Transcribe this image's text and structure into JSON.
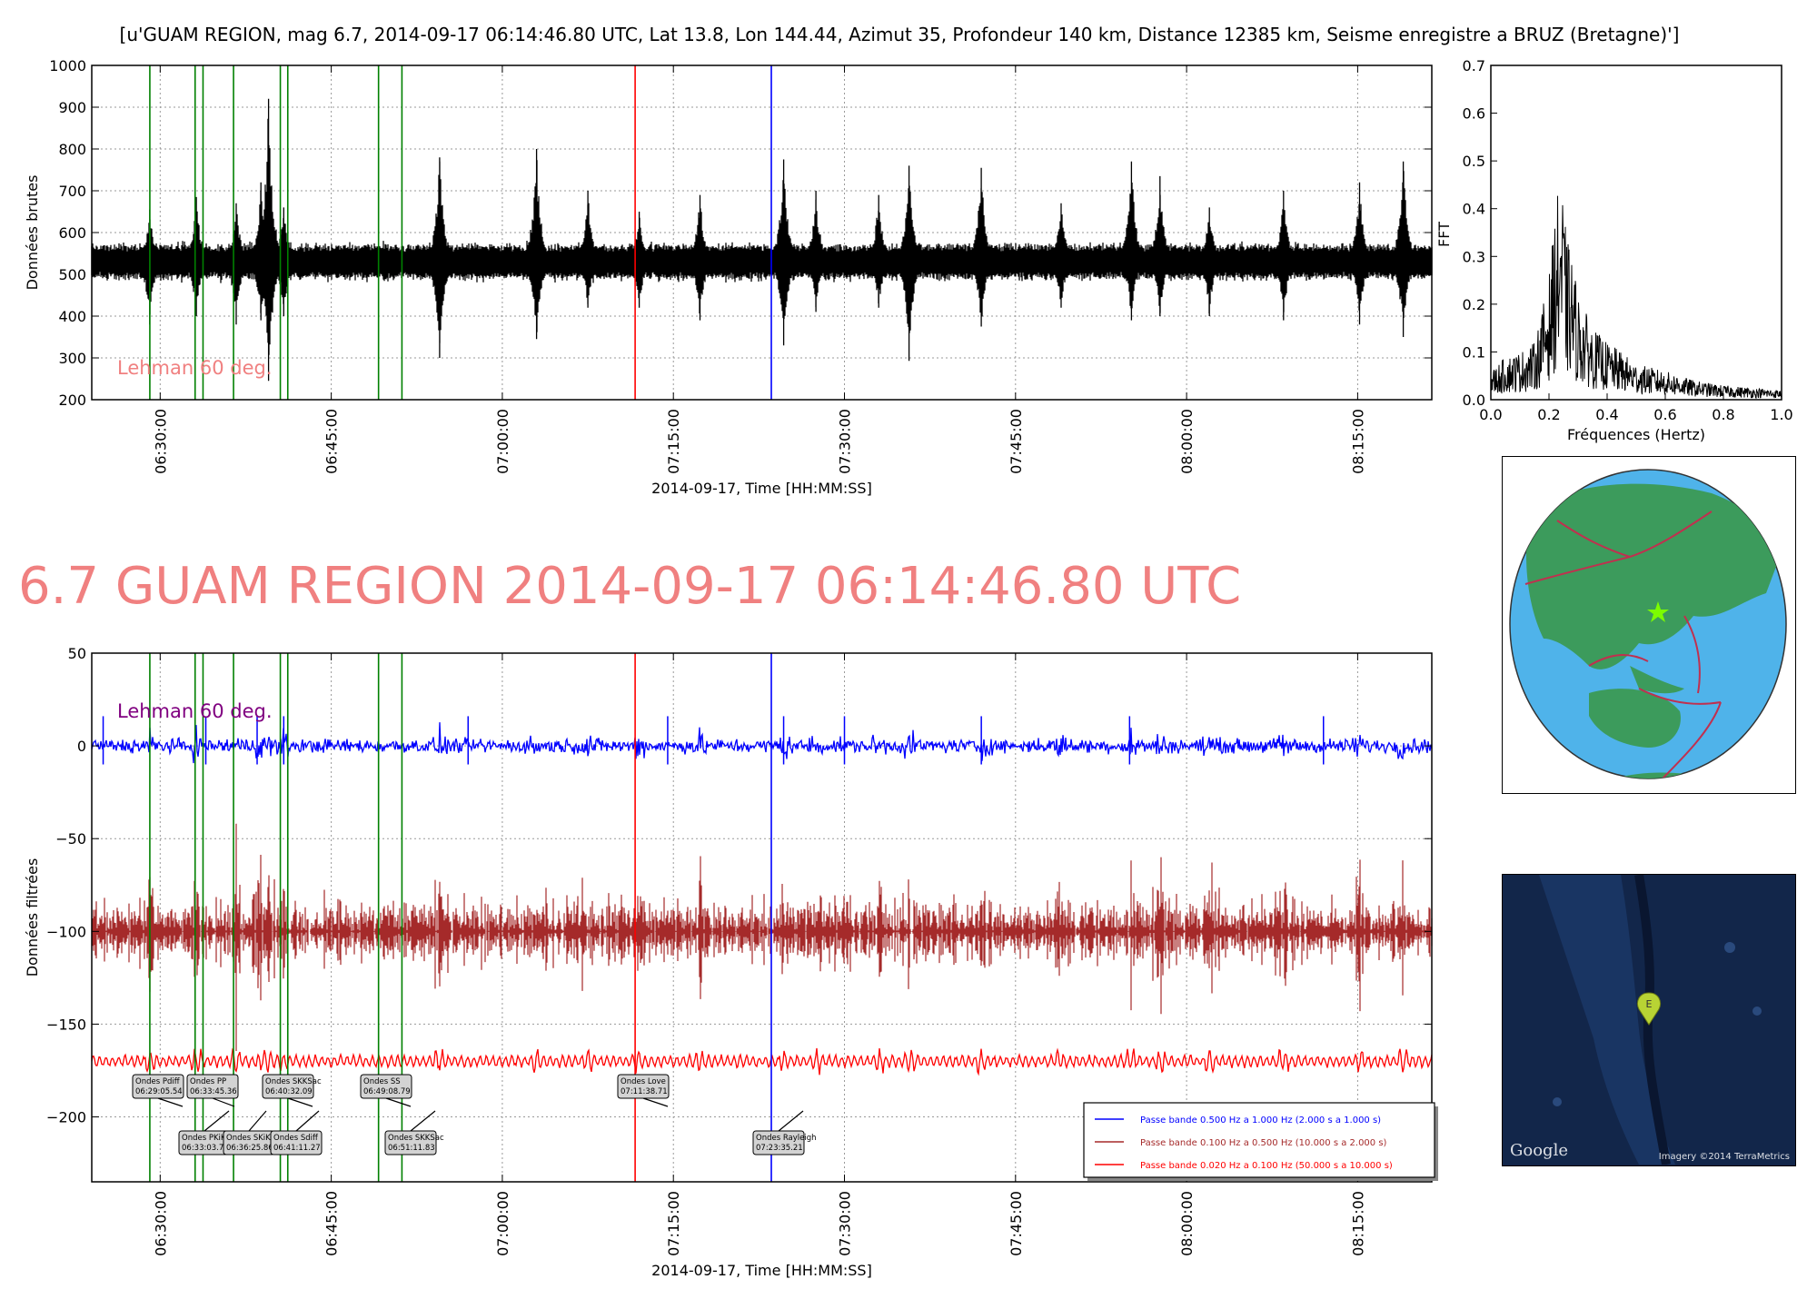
{
  "header_title": "[u'GUAM REGION, mag 6.7, 2014-09-17 06:14:46.80 UTC, Lat 13.8, Lon 144.44, Azimut 35, Profondeur 140 km, Distance 12385 km, Seisme enregistre a BRUZ (Bretagne)']",
  "big_title": "6.7 GUAM REGION 2014-09-17 06:14:46.80 UTC",
  "colors": {
    "green_marker": "#008000",
    "red_marker": "#ff0000",
    "blue_marker": "#0000ff",
    "raw_trace": "#000000",
    "band1": "#0000ff",
    "band2": "#a52a2a",
    "band3": "#ff0000",
    "lehman_top": "#f08080",
    "lehman_bottom": "#800080",
    "big_title": "#f08080",
    "ocean": "#4fb3ea",
    "land": "#3c9b5c",
    "plate_boundary": "#c0304f"
  },
  "chart_data": [
    {
      "id": "raw",
      "type": "line",
      "title": "",
      "xlabel": "2014-09-17, Time [HH:MM:SS]",
      "ylabel": "Données brutes",
      "xlim": [
        "06:24:00",
        "08:21:30"
      ],
      "ylim": [
        200,
        1000
      ],
      "yticks": [
        200,
        300,
        400,
        500,
        600,
        700,
        800,
        900,
        1000
      ],
      "xticks": [
        "06:30:00",
        "06:45:00",
        "07:00:00",
        "07:15:00",
        "07:30:00",
        "07:45:00",
        "08:00:00",
        "08:15:00"
      ],
      "grid": true,
      "baseline": 530,
      "annotation": "Lehman 60 deg.",
      "series": [
        {
          "color": "#000000",
          "baseline": 530,
          "noise_amplitude": 30
        }
      ],
      "spikes": [
        {
          "t": "06:29:05",
          "max": 655,
          "min": 380
        },
        {
          "t": "06:33:10",
          "max": 685,
          "min": 400
        },
        {
          "t": "06:36:40",
          "max": 670,
          "min": 380
        },
        {
          "t": "06:38:50",
          "max": 720,
          "min": 390
        },
        {
          "t": "06:39:30",
          "max": 920,
          "min": 245
        },
        {
          "t": "06:40:50",
          "max": 660,
          "min": 400
        },
        {
          "t": "06:54:30",
          "max": 780,
          "min": 300
        },
        {
          "t": "07:03:00",
          "max": 800,
          "min": 345
        },
        {
          "t": "07:07:30",
          "max": 700,
          "min": 420
        },
        {
          "t": "07:12:00",
          "max": 650,
          "min": 420
        },
        {
          "t": "07:17:20",
          "max": 690,
          "min": 390
        },
        {
          "t": "07:24:40",
          "max": 775,
          "min": 330
        },
        {
          "t": "07:27:30",
          "max": 700,
          "min": 410
        },
        {
          "t": "07:33:00",
          "max": 690,
          "min": 420
        },
        {
          "t": "07:35:40",
          "max": 760,
          "min": 293
        },
        {
          "t": "07:42:00",
          "max": 755,
          "min": 375
        },
        {
          "t": "07:49:00",
          "max": 670,
          "min": 420
        },
        {
          "t": "07:55:10",
          "max": 770,
          "min": 390
        },
        {
          "t": "07:57:40",
          "max": 735,
          "min": 400
        },
        {
          "t": "08:02:00",
          "max": 660,
          "min": 400
        },
        {
          "t": "08:08:30",
          "max": 700,
          "min": 390
        },
        {
          "t": "08:15:10",
          "max": 720,
          "min": 380
        },
        {
          "t": "08:19:00",
          "max": 770,
          "min": 350
        }
      ]
    },
    {
      "id": "fft",
      "type": "line",
      "title": "",
      "xlabel": "Fréquences (Hertz)",
      "ylabel": "FFT",
      "xlim": [
        0.0,
        1.0
      ],
      "ylim": [
        0.0,
        0.7
      ],
      "xticks": [
        0.0,
        0.2,
        0.4,
        0.6,
        0.8,
        1.0
      ],
      "yticks": [
        0.0,
        0.1,
        0.2,
        0.3,
        0.4,
        0.5,
        0.6,
        0.7
      ],
      "x": [
        0.0,
        0.05,
        0.1,
        0.15,
        0.18,
        0.2,
        0.22,
        0.24,
        0.26,
        0.28,
        0.3,
        0.35,
        0.4,
        0.45,
        0.5,
        0.6,
        0.7,
        0.8,
        0.9,
        1.0
      ],
      "y": [
        0.06,
        0.09,
        0.1,
        0.12,
        0.2,
        0.26,
        0.38,
        0.48,
        0.34,
        0.3,
        0.22,
        0.15,
        0.12,
        0.1,
        0.075,
        0.06,
        0.04,
        0.03,
        0.025,
        0.02
      ]
    },
    {
      "id": "filtered",
      "type": "line",
      "title": "",
      "xlabel": "2014-09-17, Time [HH:MM:SS]",
      "ylabel": "Données filtrées",
      "xlim": [
        "06:24:00",
        "08:21:30"
      ],
      "ylim": [
        -235,
        50
      ],
      "yticks": [
        -200,
        -150,
        -100,
        -50,
        0,
        50
      ],
      "xticks": [
        "06:30:00",
        "06:45:00",
        "07:00:00",
        "07:15:00",
        "07:30:00",
        "07:45:00",
        "08:00:00",
        "08:15:00"
      ],
      "grid": true,
      "annotation": "Lehman 60 deg.",
      "legend_position": "lower-right",
      "series": [
        {
          "name": "Passe bande 0.500 Hz a 1.000 Hz (2.000 s a 1.000 s)",
          "color": "#0000ff",
          "baseline": 0,
          "noise_amplitude": 3
        },
        {
          "name": "Passe bande 0.100 Hz a 0.500 Hz (10.000 s a 2.000 s)",
          "color": "#a52a2a",
          "baseline": -100,
          "noise_amplitude": 14
        },
        {
          "name": "Passe bande 0.020 Hz a 0.100 Hz (50.000 s a 10.000 s)",
          "color": "#ff0000",
          "baseline": -170,
          "noise_amplitude": 2.5
        }
      ],
      "phase_boxes": [
        {
          "line1": "Ondes Pdiff",
          "line2": "06:29:05.54"
        },
        {
          "line1": "Ondes PP",
          "line2": "06:33:45.36"
        },
        {
          "line1": "Ondes SKKSac",
          "line2": "06:40:32.09"
        },
        {
          "line1": "Ondes SS",
          "line2": "06:49:08.79"
        },
        {
          "line1": "Ondes Love",
          "line2": "07:11:38.71"
        },
        {
          "line1": "Ondes PKiKP",
          "line2": "06:33:03.74"
        },
        {
          "line1": "Ondes SKiKP",
          "line2": "06:36:25.86"
        },
        {
          "line1": "Ondes Sdiff",
          "line2": "06:41:11.27"
        },
        {
          "line1": "Ondes SKKSac",
          "line2": "06:51:11.83"
        },
        {
          "line1": "Ondes Rayleigh",
          "line2": "07:23:35.21"
        }
      ]
    }
  ],
  "phase_markers": [
    {
      "t": "06:29:05.54",
      "color": "green"
    },
    {
      "t": "06:33:03.74",
      "color": "green"
    },
    {
      "t": "06:33:45.36",
      "color": "green"
    },
    {
      "t": "06:36:25.86",
      "color": "green"
    },
    {
      "t": "06:40:32.09",
      "color": "green"
    },
    {
      "t": "06:41:11.27",
      "color": "green"
    },
    {
      "t": "06:49:08.79",
      "color": "green"
    },
    {
      "t": "06:51:11.83",
      "color": "green"
    },
    {
      "t": "07:11:38.71",
      "color": "red"
    },
    {
      "t": "07:23:35.21",
      "color": "blue"
    }
  ],
  "satellite": {
    "marker_label": "E",
    "logo": "Google",
    "credit": "Imagery ©2014 TerraMetrics"
  }
}
